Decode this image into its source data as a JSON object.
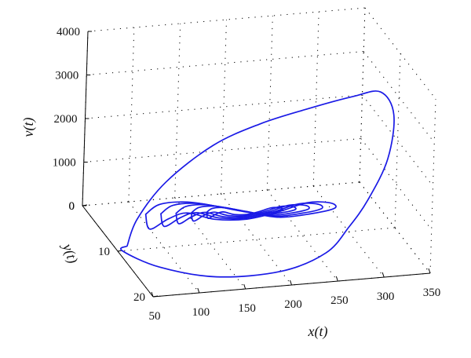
{
  "chart_data": {
    "type": "line",
    "projection": "3d",
    "grid": true,
    "xlabel": "x(t)",
    "ylabel": "y(t)",
    "zlabel": "v(t)",
    "xlim": [
      50,
      350
    ],
    "ylim": [
      0,
      20
    ],
    "zlim": [
      0,
      4000
    ],
    "x_ticks": [
      "50",
      "100",
      "150",
      "200",
      "250",
      "300",
      "350"
    ],
    "y_ticks": [
      "0",
      "10",
      "20"
    ],
    "z_ticks": [
      "0",
      "1000",
      "2000",
      "3000",
      "4000"
    ],
    "series": [
      {
        "color": "#1a1ae6",
        "points": [
          [
            60,
            10,
            100
          ],
          [
            70,
            10,
            700
          ],
          [
            100,
            10,
            1500
          ],
          [
            150,
            10,
            2250
          ],
          [
            200,
            10,
            2650
          ],
          [
            250,
            10,
            2900
          ],
          [
            300,
            10,
            3100
          ],
          [
            330,
            10,
            3150
          ],
          [
            345,
            10,
            2600
          ],
          [
            340,
            10,
            1600
          ],
          [
            320,
            10,
            700
          ],
          [
            300,
            10,
            100
          ],
          [
            260,
            14,
            0
          ],
          [
            200,
            17,
            0
          ],
          [
            130,
            17,
            0
          ],
          [
            80,
            14,
            0
          ],
          [
            55,
            10,
            0
          ],
          [
            60,
            10,
            100
          ]
        ]
      },
      {
        "color": "#1a1ae6",
        "points": [
          [
            95,
            6,
            350
          ],
          [
            110,
            6,
            550
          ],
          [
            140,
            6,
            550
          ],
          [
            170,
            6,
            400
          ],
          [
            205,
            6,
            200
          ],
          [
            240,
            6,
            20
          ],
          [
            275,
            6,
            40
          ],
          [
            300,
            6,
            120
          ],
          [
            295,
            6,
            250
          ],
          [
            270,
            6,
            300
          ],
          [
            240,
            6,
            150
          ],
          [
            205,
            6,
            40
          ],
          [
            170,
            6,
            100
          ],
          [
            140,
            6,
            300
          ],
          [
            120,
            6,
            200
          ],
          [
            100,
            6,
            0
          ],
          [
            95,
            6,
            350
          ]
        ]
      }
    ]
  }
}
